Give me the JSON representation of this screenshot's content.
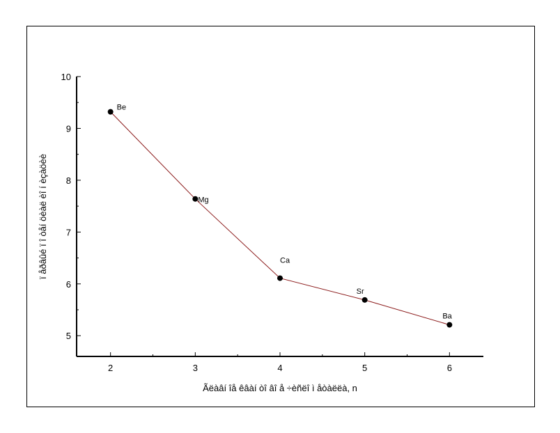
{
  "chart_data": {
    "type": "line",
    "title": "",
    "xlabel": "Ãëàâí îå êâàí òî âî å ÷èñëî  ì åòàëëà, n",
    "ylabel": "ï åðâûé  ï î òåí öèàë èî í èçàöèè",
    "x": [
      2,
      3,
      4,
      5,
      6
    ],
    "series": [
      {
        "values": [
          9.32,
          7.64,
          6.11,
          5.69,
          5.21
        ]
      }
    ],
    "point_labels": [
      "Be",
      "Mg",
      "Ca",
      "Sr",
      "Ba"
    ],
    "xlim": [
      1.6,
      6.4
    ],
    "ylim": [
      4.6,
      10.0
    ],
    "xticks": [
      2,
      3,
      4,
      5,
      6
    ],
    "yticks": [
      5,
      6,
      7,
      8,
      9,
      10
    ],
    "grid": false,
    "legend": "none",
    "line_color": "#8b1a1a",
    "marker_color": "#000000"
  }
}
